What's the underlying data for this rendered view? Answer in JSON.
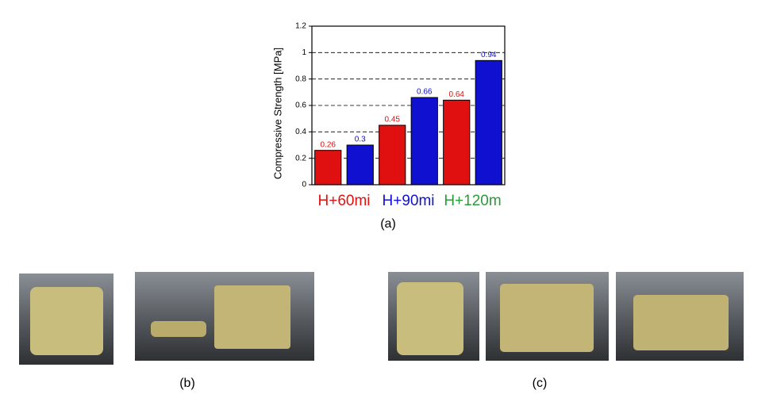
{
  "chart_data": {
    "type": "bar",
    "y_label": "Compressive Strength [MPa]",
    "values": [
      0.26,
      0.3,
      0.45,
      0.66,
      0.64,
      0.94
    ],
    "colors": [
      "#e01010",
      "#1010d0",
      "#e01010",
      "#1010d0",
      "#e01010",
      "#1010d0"
    ],
    "groups": [
      {
        "label": "H+60mi",
        "color": "#e01010"
      },
      {
        "label": "H+90mi",
        "color": "#1010d0"
      },
      {
        "label": "H+120m",
        "color": "#2a9a3a"
      }
    ],
    "ylim": [
      0,
      1.2
    ],
    "yticks": [
      0,
      0.2,
      0.4,
      0.6,
      0.8,
      1,
      1.2
    ],
    "grid": true
  },
  "captions": {
    "a": "(a)",
    "b": "(b)",
    "c": "(c)"
  }
}
